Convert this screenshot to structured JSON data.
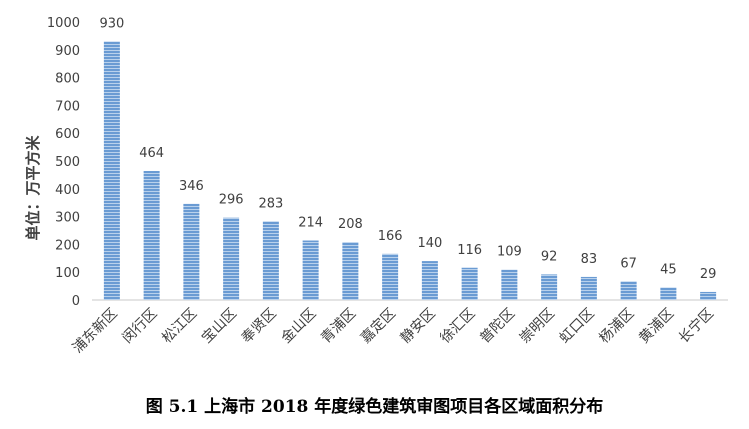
{
  "caption": "图 5.1 上海市 2018 年度绿色建筑审图项目各区域面积分布",
  "colors": {
    "bar": "#6a9bd3",
    "bar_stripe": "#b9d1ec",
    "axis": "#c8c8c8",
    "text": "#404040"
  },
  "chart_data": {
    "type": "bar",
    "title": "",
    "xlabel": "",
    "ylabel": "单位：万平方米",
    "ylim": [
      0,
      1000
    ],
    "yticks": [
      0,
      100,
      200,
      300,
      400,
      500,
      600,
      700,
      800,
      900,
      1000
    ],
    "grid": false,
    "categories": [
      "浦东新区",
      "闵行区",
      "松江区",
      "宝山区",
      "奉贤区",
      "金山区",
      "青浦区",
      "嘉定区",
      "静安区",
      "徐汇区",
      "普陀区",
      "崇明区",
      "虹口区",
      "杨浦区",
      "黄浦区",
      "长宁区"
    ],
    "values": [
      930,
      464,
      346,
      296,
      283,
      214,
      208,
      166,
      140,
      116,
      109,
      92,
      83,
      67,
      45,
      29
    ]
  }
}
